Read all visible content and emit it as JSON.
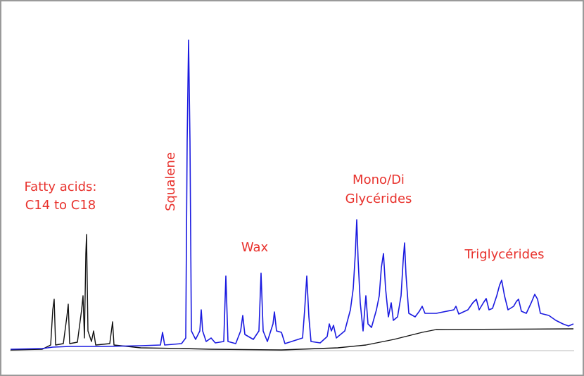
{
  "annotations": {
    "fatty_acids": [
      "Fatty acids:",
      "C14 to C18"
    ],
    "squalene": "Squalene",
    "wax": "Wax",
    "glycerides": [
      "Mono/Di",
      "Glycérides"
    ],
    "triglycerides": "Triglycérides"
  }
}
